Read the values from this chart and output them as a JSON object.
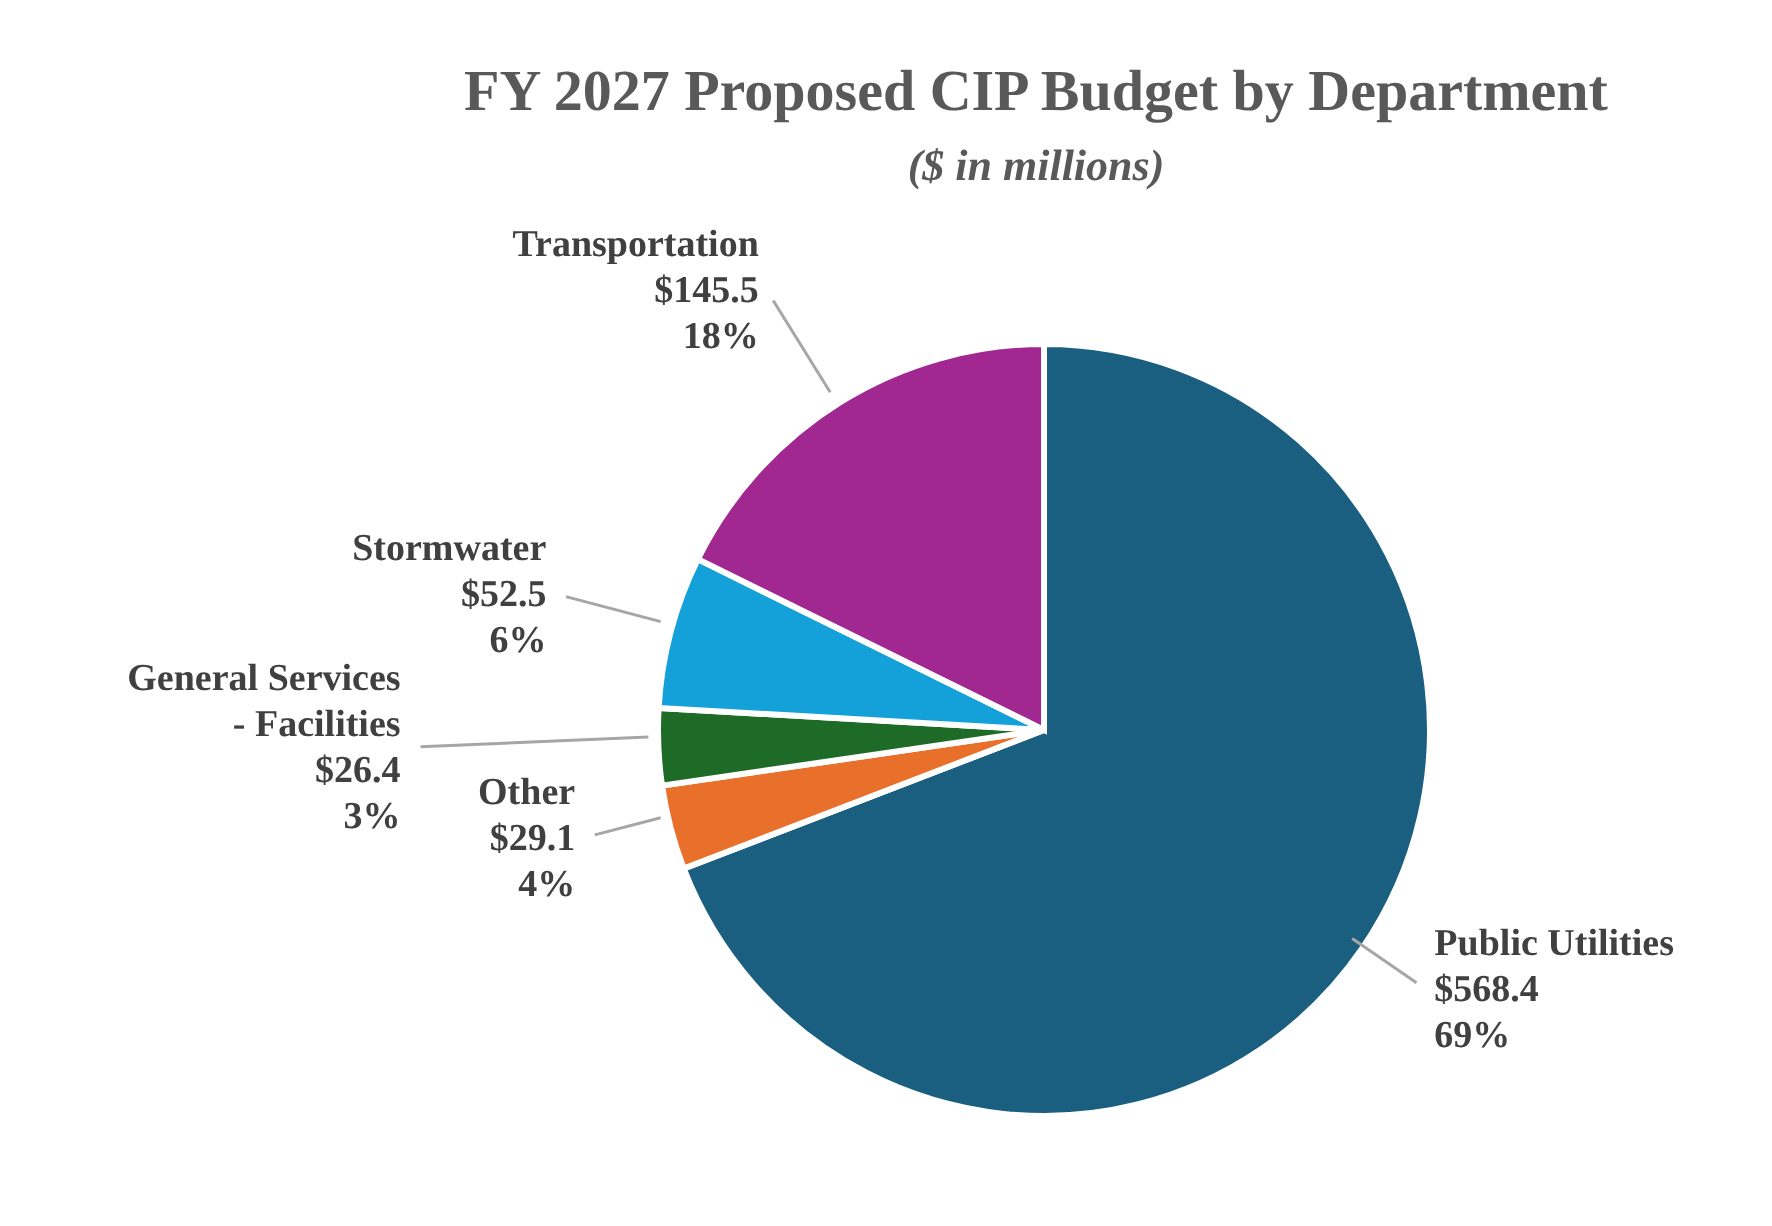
{
  "chart_data": {
    "type": "pie",
    "title": "FY 2027 Proposed CIP Budget by Department",
    "subtitle": "($ in millions)",
    "categories": [
      "Public Utilities",
      "Other",
      "General Services - Facilities",
      "Stormwater",
      "Transportation"
    ],
    "values": [
      568.4,
      29.1,
      26.4,
      52.5,
      145.5
    ],
    "colors": [
      "#1a5e80",
      "#e8702a",
      "#1e6b27",
      "#14a0d8",
      "#a02890"
    ],
    "value_labels": [
      "$568.4\n69%",
      "$29.1\n4%",
      "$26.4\n3%",
      "$52.5\n6%",
      "$145.5\n18%"
    ]
  }
}
